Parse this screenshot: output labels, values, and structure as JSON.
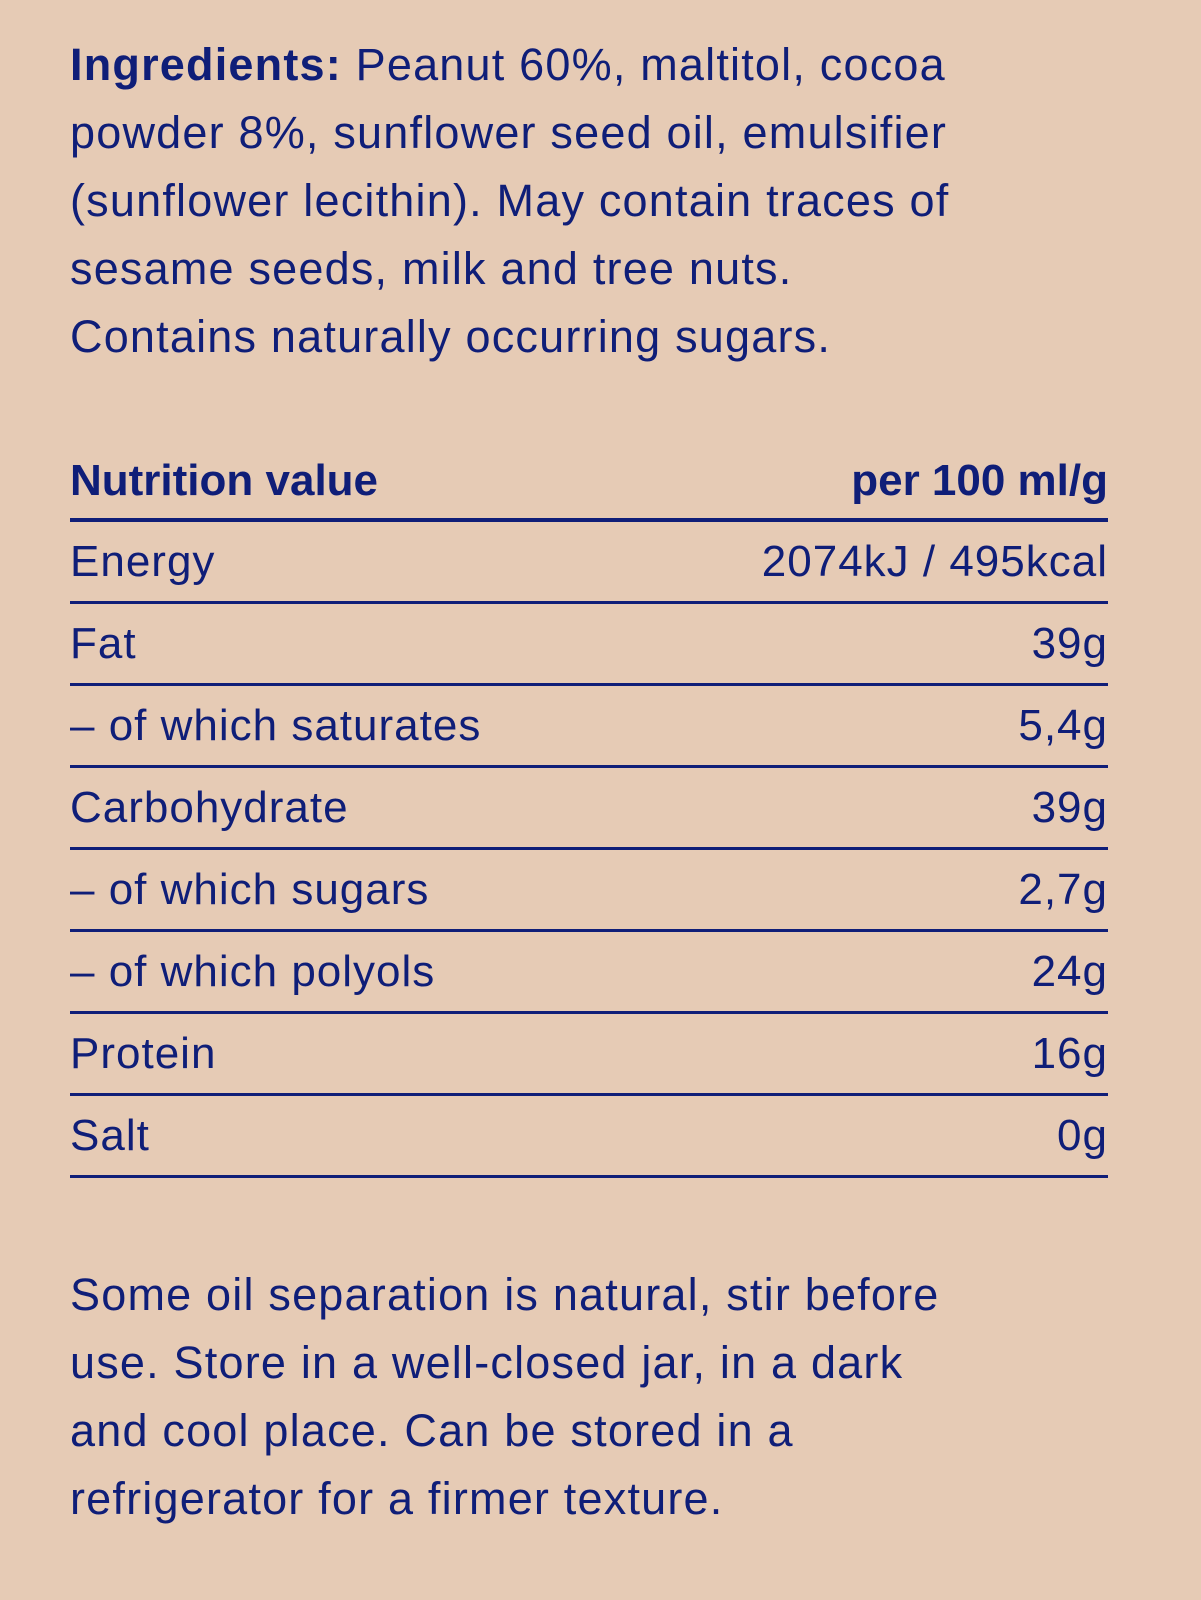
{
  "ingredients": {
    "label": "Ingredients:",
    "lines": [
      " Peanut 60%, maltitol, cocoa",
      "powder 8%, sunflower seed oil, emulsifier",
      "(sunflower lecithin). May contain traces of",
      "sesame seeds, milk and tree nuts.",
      "Contains naturally occurring sugars."
    ]
  },
  "nutrition": {
    "header_name": "Nutrition value",
    "header_unit": "per 100 ml/g",
    "rows": [
      {
        "name": "Energy",
        "value": "2074kJ / 495kcal"
      },
      {
        "name": "Fat",
        "value": "39g"
      },
      {
        "name": "– of which saturates",
        "value": "5,4g"
      },
      {
        "name": "Carbohydrate",
        "value": "39g"
      },
      {
        "name": "– of which sugars",
        "value": "2,7g"
      },
      {
        "name": "– of which polyols",
        "value": "24g"
      },
      {
        "name": "Protein",
        "value": "16g"
      },
      {
        "name": "Salt",
        "value": "0g"
      }
    ]
  },
  "storage": {
    "lines": [
      "Some oil separation is natural, stir before",
      "use. Store in a well-closed jar, in a dark",
      "and cool place. Can be stored in a",
      "refrigerator for a firmer texture."
    ]
  },
  "colors": {
    "background": "#E6CBB5",
    "text": "#0F1E78"
  }
}
